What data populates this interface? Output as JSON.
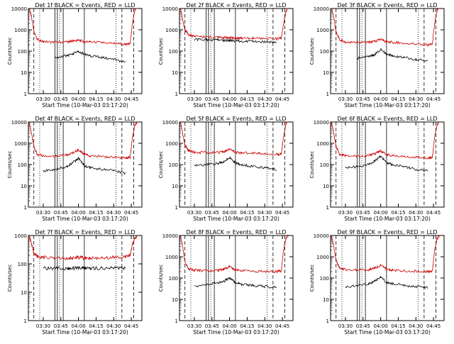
{
  "page": {
    "background": "#ffffff"
  },
  "common": {
    "xlabel": "Start Time (10-Mar-03 03:17:20)",
    "ylabel": "Counts/sec",
    "xticks": [
      "03:30",
      "03:45",
      "04:00",
      "04:15",
      "04:30",
      "04:45"
    ],
    "yticks": [
      "1",
      "10",
      "100",
      "1000",
      "10000"
    ],
    "legend_text": "BLACK = Events, RED = LLD",
    "colors": {
      "events": "#000000",
      "lld": "#cc0000",
      "axes": "#000000"
    }
  },
  "chart_data": [
    {
      "type": "line",
      "title": "Det 1f BLACK = Events, RED = LLD",
      "xlabel": "Start Time (10-Mar-03 03:17:20)",
      "ylabel": "Counts/sec",
      "yscale": "log",
      "ylim": [
        1,
        10000
      ],
      "xlim": [
        "03:17:20",
        "04:54:00"
      ],
      "x": [
        "03:18",
        "03:20",
        "03:22",
        "03:25",
        "03:30",
        "03:40",
        "03:50",
        "03:55",
        "04:00",
        "04:05",
        "04:10",
        "04:20",
        "04:30",
        "04:40",
        "04:44",
        "04:46",
        "04:48",
        "04:50"
      ],
      "series": [
        {
          "name": "LLD",
          "color": "#cc0000",
          "values": [
            12000,
            4000,
            900,
            350,
            280,
            260,
            270,
            300,
            320,
            280,
            270,
            250,
            230,
            210,
            220,
            2000,
            8000,
            13000
          ]
        },
        {
          "name": "Events",
          "color": "#000000",
          "values": [
            null,
            null,
            null,
            null,
            null,
            50,
            60,
            70,
            100,
            70,
            60,
            50,
            40,
            30,
            null,
            null,
            null,
            null
          ]
        }
      ],
      "vlines_solid": [
        "03:40",
        "03:42",
        "03:47",
        "04:05"
      ],
      "vlines_dotted": [
        "03:27",
        "03:44",
        "04:32"
      ],
      "vlines_dashed": [
        "03:22",
        "04:37",
        "04:47"
      ]
    },
    {
      "type": "line",
      "title": "Det 2f BLACK = Events, RED = LLD",
      "xlabel": "Start Time (10-Mar-03 03:17:20)",
      "ylabel": "Counts/sec",
      "yscale": "log",
      "ylim": [
        1,
        10000
      ],
      "xlim": [
        "03:17:20",
        "04:54:00"
      ],
      "x": [
        "03:18",
        "03:20",
        "03:22",
        "03:25",
        "03:30",
        "03:40",
        "03:50",
        "03:55",
        "04:00",
        "04:05",
        "04:10",
        "04:20",
        "04:30",
        "04:40",
        "04:44",
        "04:46",
        "04:48",
        "04:50"
      ],
      "series": [
        {
          "name": "LLD",
          "color": "#cc0000",
          "values": [
            12000,
            3000,
            1000,
            600,
            500,
            460,
            450,
            430,
            420,
            420,
            410,
            400,
            390,
            380,
            400,
            2000,
            7000,
            12000
          ]
        },
        {
          "name": "Events",
          "color": "#000000",
          "values": [
            null,
            null,
            null,
            null,
            350,
            340,
            330,
            320,
            310,
            300,
            290,
            280,
            270,
            260,
            null,
            null,
            null,
            null
          ]
        }
      ],
      "vlines_solid": [
        "03:40",
        "03:42",
        "03:47",
        "04:05"
      ],
      "vlines_dotted": [
        "03:27",
        "03:44",
        "04:32"
      ],
      "vlines_dashed": [
        "03:22",
        "04:37",
        "04:47"
      ]
    },
    {
      "type": "line",
      "title": "Det 3f BLACK = Events, RED = LLD",
      "xlabel": "Start Time (10-Mar-03 03:17:20)",
      "ylabel": "Counts/sec",
      "yscale": "log",
      "ylim": [
        1,
        10000
      ],
      "xlim": [
        "03:17:20",
        "04:54:00"
      ],
      "x": [
        "03:18",
        "03:20",
        "03:22",
        "03:25",
        "03:30",
        "03:40",
        "03:50",
        "03:55",
        "04:00",
        "04:05",
        "04:10",
        "04:20",
        "04:30",
        "04:40",
        "04:44",
        "04:46",
        "04:48",
        "04:50"
      ],
      "series": [
        {
          "name": "LLD",
          "color": "#cc0000",
          "values": [
            12000,
            4000,
            800,
            350,
            270,
            250,
            260,
            290,
            350,
            280,
            260,
            240,
            220,
            200,
            220,
            2000,
            8000,
            13000
          ]
        },
        {
          "name": "Events",
          "color": "#000000",
          "values": [
            null,
            null,
            null,
            null,
            null,
            45,
            55,
            70,
            120,
            70,
            60,
            50,
            40,
            35,
            null,
            null,
            null,
            null
          ]
        }
      ],
      "vlines_solid": [
        "03:40",
        "03:42",
        "03:47",
        "04:05"
      ],
      "vlines_dotted": [
        "03:27",
        "03:44",
        "04:32"
      ],
      "vlines_dashed": [
        "03:22",
        "04:37",
        "04:47"
      ]
    },
    {
      "type": "line",
      "title": "Det 4f BLACK = Events, RED = LLD",
      "xlabel": "Start Time (10-Mar-03 03:17:20)",
      "ylabel": "Counts/sec",
      "yscale": "log",
      "ylim": [
        1,
        10000
      ],
      "xlim": [
        "03:17:20",
        "04:54:00"
      ],
      "x": [
        "03:18",
        "03:20",
        "03:22",
        "03:25",
        "03:30",
        "03:40",
        "03:50",
        "03:55",
        "04:00",
        "04:05",
        "04:10",
        "04:20",
        "04:30",
        "04:40",
        "04:44",
        "04:46",
        "04:48",
        "04:50"
      ],
      "series": [
        {
          "name": "LLD",
          "color": "#cc0000",
          "values": [
            10000,
            3000,
            700,
            300,
            260,
            240,
            280,
            350,
            500,
            300,
            260,
            240,
            220,
            200,
            220,
            2000,
            7000,
            10000
          ]
        },
        {
          "name": "Events",
          "color": "#000000",
          "values": [
            null,
            null,
            null,
            null,
            50,
            60,
            80,
            120,
            200,
            90,
            70,
            60,
            50,
            40,
            null,
            null,
            null,
            null
          ]
        }
      ],
      "vlines_solid": [
        "03:40",
        "03:42",
        "03:47",
        "04:05"
      ],
      "vlines_dotted": [
        "03:27",
        "03:44",
        "04:32"
      ],
      "vlines_dashed": [
        "03:22",
        "04:37",
        "04:47"
      ]
    },
    {
      "type": "line",
      "title": "Det 5f BLACK = Events, RED = LLD",
      "xlabel": "Start Time (10-Mar-03 03:17:20)",
      "ylabel": "Counts/sec",
      "yscale": "log",
      "ylim": [
        1,
        10000
      ],
      "xlim": [
        "03:17:20",
        "04:54:00"
      ],
      "x": [
        "03:18",
        "03:20",
        "03:22",
        "03:25",
        "03:30",
        "03:40",
        "03:50",
        "03:55",
        "04:00",
        "04:05",
        "04:10",
        "04:20",
        "04:30",
        "04:40",
        "04:44",
        "04:46",
        "04:48",
        "04:50"
      ],
      "series": [
        {
          "name": "LLD",
          "color": "#cc0000",
          "values": [
            12000,
            3000,
            800,
            450,
            380,
            360,
            370,
            400,
            550,
            380,
            360,
            340,
            320,
            300,
            320,
            2000,
            8000,
            12000
          ]
        },
        {
          "name": "Events",
          "color": "#000000",
          "values": [
            null,
            null,
            null,
            null,
            90,
            100,
            110,
            140,
            220,
            120,
            100,
            80,
            70,
            60,
            null,
            null,
            null,
            null
          ]
        }
      ],
      "vlines_solid": [
        "03:40",
        "03:42",
        "03:47",
        "04:05"
      ],
      "vlines_dotted": [
        "03:27",
        "03:44",
        "04:32"
      ],
      "vlines_dashed": [
        "03:22",
        "04:37",
        "04:47"
      ]
    },
    {
      "type": "line",
      "title": "Det 6f BLACK = Events, RED = LLD",
      "xlabel": "Start Time (10-Mar-03 03:17:20)",
      "ylabel": "Counts/sec",
      "yscale": "log",
      "ylim": [
        1,
        10000
      ],
      "xlim": [
        "03:17:20",
        "04:54:00"
      ],
      "x": [
        "03:18",
        "03:20",
        "03:22",
        "03:25",
        "03:30",
        "03:40",
        "03:50",
        "03:55",
        "04:00",
        "04:05",
        "04:10",
        "04:20",
        "04:30",
        "04:40",
        "04:44",
        "04:46",
        "04:48",
        "04:50"
      ],
      "series": [
        {
          "name": "LLD",
          "color": "#cc0000",
          "values": [
            10000,
            3000,
            700,
            300,
            260,
            250,
            270,
            320,
            450,
            300,
            260,
            240,
            220,
            200,
            220,
            2000,
            7000,
            11000
          ]
        },
        {
          "name": "Events",
          "color": "#000000",
          "values": [
            null,
            null,
            null,
            null,
            70,
            80,
            100,
            150,
            250,
            120,
            100,
            80,
            60,
            50,
            null,
            null,
            null,
            null
          ]
        }
      ],
      "vlines_solid": [
        "03:40",
        "03:42",
        "03:47",
        "04:05"
      ],
      "vlines_dotted": [
        "03:27",
        "03:44",
        "04:32"
      ],
      "vlines_dashed": [
        "03:22",
        "04:37",
        "04:47"
      ]
    },
    {
      "type": "line",
      "title": "Det 7f BLACK = Events, RED = LLD",
      "xlabel": "Start Time (10-Mar-03 03:17:20)",
      "ylabel": "Counts/sec",
      "yscale": "log",
      "ylim": [
        1,
        1000
      ],
      "xlim": [
        "03:17:20",
        "04:54:00"
      ],
      "x": [
        "03:18",
        "03:20",
        "03:22",
        "03:25",
        "03:30",
        "03:40",
        "03:50",
        "03:55",
        "04:00",
        "04:05",
        "04:10",
        "04:20",
        "04:30",
        "04:40",
        "04:44",
        "04:46",
        "04:48",
        "04:50"
      ],
      "series": [
        {
          "name": "LLD",
          "color": "#cc0000",
          "values": [
            1000,
            500,
            250,
            180,
            170,
            160,
            160,
            160,
            170,
            160,
            160,
            160,
            170,
            180,
            200,
            500,
            800,
            1000
          ]
        },
        {
          "name": "Events",
          "color": "#000000",
          "values": [
            null,
            null,
            null,
            null,
            70,
            70,
            70,
            70,
            70,
            70,
            70,
            70,
            70,
            70,
            null,
            null,
            null,
            null
          ]
        }
      ],
      "vlines_solid": [
        "03:40",
        "03:42",
        "03:47",
        "04:05"
      ],
      "vlines_dotted": [
        "03:27",
        "03:44",
        "04:32"
      ],
      "vlines_dashed": [
        "03:22",
        "04:37",
        "04:47"
      ]
    },
    {
      "type": "line",
      "title": "Det 8f BLACK = Events, RED = LLD",
      "xlabel": "Start Time (10-Mar-03 03:17:20)",
      "ylabel": "Counts/sec",
      "yscale": "log",
      "ylim": [
        1,
        10000
      ],
      "xlim": [
        "03:17:20",
        "04:54:00"
      ],
      "x": [
        "03:18",
        "03:20",
        "03:22",
        "03:25",
        "03:30",
        "03:40",
        "03:50",
        "03:55",
        "04:00",
        "04:05",
        "04:10",
        "04:20",
        "04:30",
        "04:40",
        "04:44",
        "04:46",
        "04:48",
        "04:50"
      ],
      "series": [
        {
          "name": "LLD",
          "color": "#cc0000",
          "values": [
            10000,
            3000,
            600,
            280,
            230,
            220,
            230,
            260,
            350,
            240,
            220,
            210,
            200,
            200,
            220,
            2000,
            7000,
            10000
          ]
        },
        {
          "name": "Events",
          "color": "#000000",
          "values": [
            null,
            null,
            null,
            null,
            40,
            50,
            60,
            70,
            100,
            60,
            50,
            45,
            40,
            35,
            null,
            null,
            null,
            null
          ]
        }
      ],
      "vlines_solid": [
        "03:40",
        "03:42",
        "03:47",
        "04:05"
      ],
      "vlines_dotted": [
        "03:27",
        "03:44",
        "04:32"
      ],
      "vlines_dashed": [
        "03:22",
        "04:37",
        "04:47"
      ]
    },
    {
      "type": "line",
      "title": "Det 9f BLACK = Events, RED = LLD",
      "xlabel": "Start Time (10-Mar-03 03:17:20)",
      "ylabel": "Counts/sec",
      "yscale": "log",
      "ylim": [
        1,
        10000
      ],
      "xlim": [
        "03:17:20",
        "04:54:00"
      ],
      "x": [
        "03:18",
        "03:20",
        "03:22",
        "03:25",
        "03:30",
        "03:40",
        "03:50",
        "03:55",
        "04:00",
        "04:05",
        "04:10",
        "04:20",
        "04:30",
        "04:40",
        "04:44",
        "04:46",
        "04:48",
        "04:50"
      ],
      "series": [
        {
          "name": "LLD",
          "color": "#cc0000",
          "values": [
            10000,
            3000,
            700,
            300,
            250,
            240,
            250,
            300,
            400,
            260,
            240,
            220,
            210,
            200,
            220,
            2000,
            7000,
            10000
          ]
        },
        {
          "name": "Events",
          "color": "#000000",
          "values": [
            null,
            null,
            null,
            null,
            35,
            45,
            55,
            70,
            110,
            60,
            55,
            45,
            40,
            35,
            null,
            null,
            null,
            null
          ]
        }
      ],
      "vlines_solid": [
        "03:40",
        "03:42",
        "03:47",
        "04:05"
      ],
      "vlines_dotted": [
        "03:27",
        "03:44",
        "04:32"
      ],
      "vlines_dashed": [
        "03:22",
        "04:37",
        "04:47"
      ]
    }
  ]
}
